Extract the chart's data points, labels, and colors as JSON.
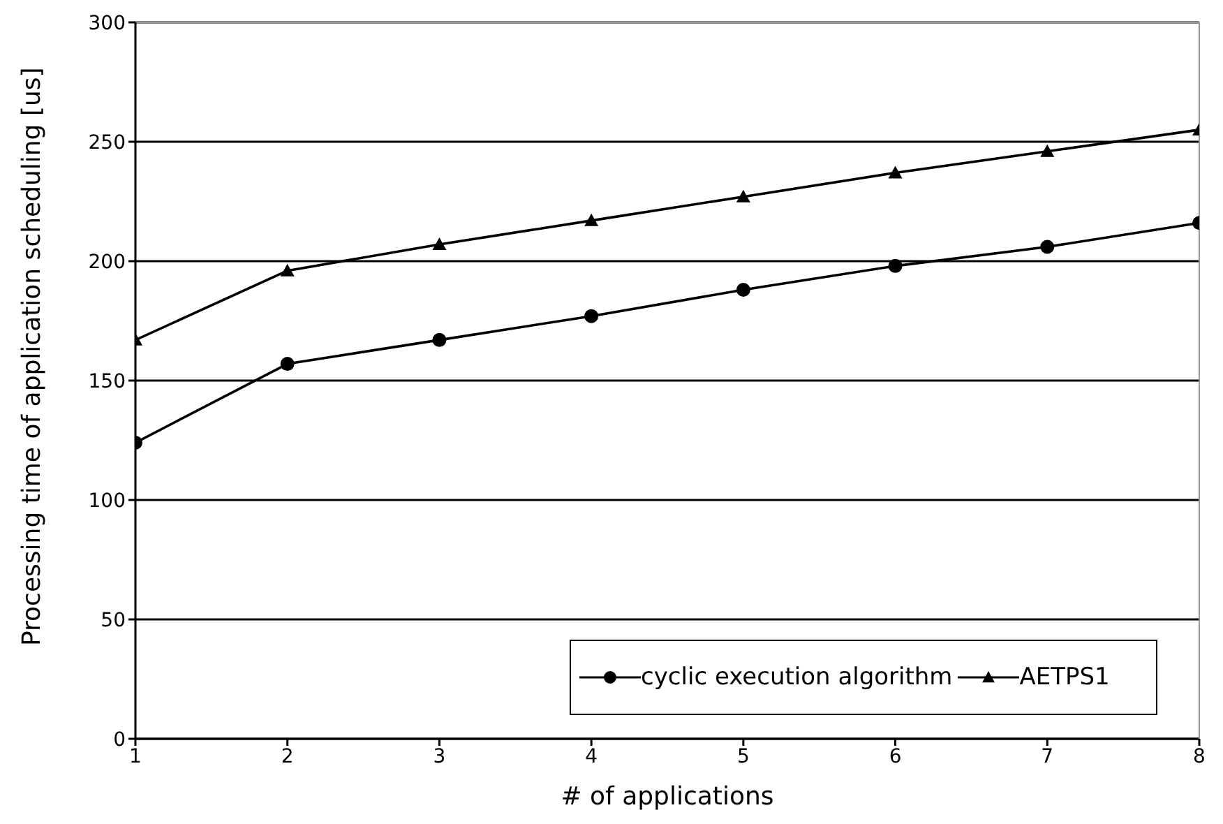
{
  "chart_data": {
    "type": "line",
    "xlabel": "# of applications",
    "ylabel": "Processing time of application scheduling [us]",
    "x": [
      1,
      2,
      3,
      4,
      5,
      6,
      7,
      8
    ],
    "series": [
      {
        "name": "cyclic execution algorithm",
        "color": "#000000",
        "marker": "circle",
        "values": [
          124,
          157,
          167,
          177,
          188,
          198,
          206,
          216
        ]
      },
      {
        "name": "AETPS1",
        "color": "#000000",
        "marker": "triangle",
        "values": [
          167,
          196,
          207,
          217,
          227,
          237,
          246,
          255
        ]
      }
    ],
    "xlim": [
      1,
      8
    ],
    "xticks": [
      1,
      2,
      3,
      4,
      5,
      6,
      7,
      8
    ],
    "ylim": [
      0,
      300
    ],
    "yticks": [
      0,
      50,
      100,
      150,
      200,
      250,
      300
    ],
    "grid": "y",
    "legend": "bottom right",
    "line_style": "solid"
  }
}
